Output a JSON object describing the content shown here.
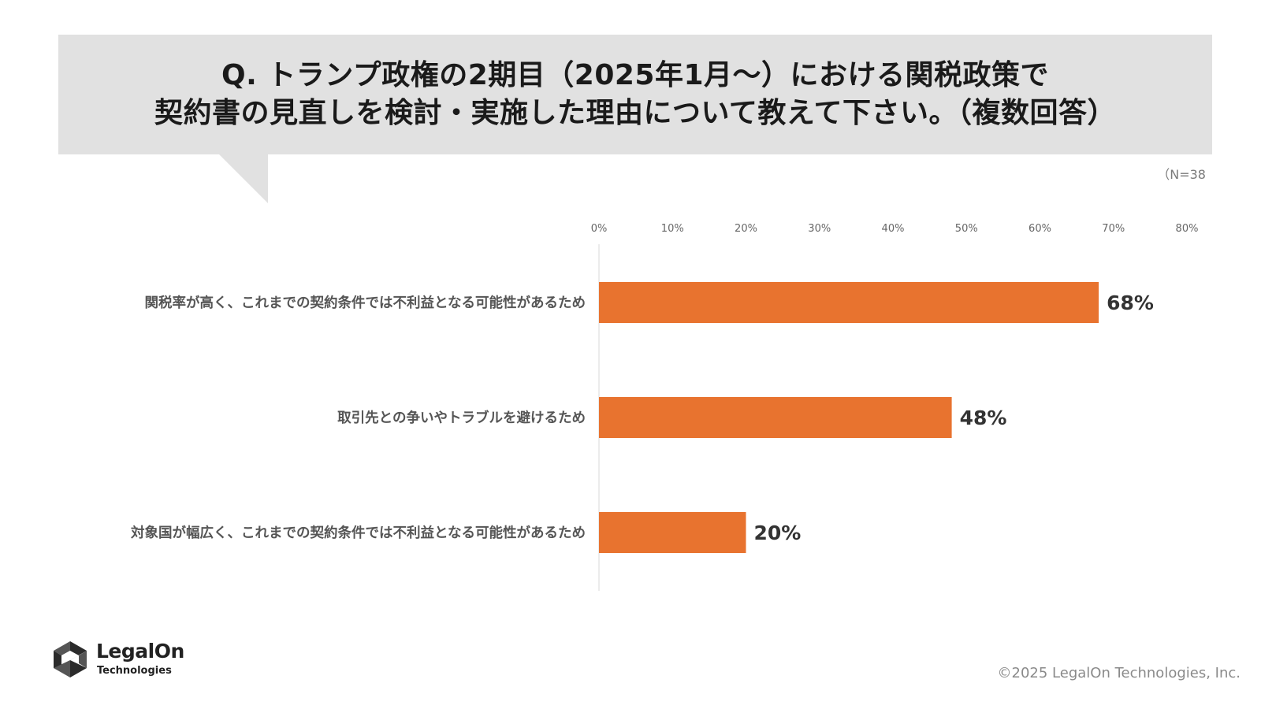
{
  "question": {
    "line1": "Q. トランプ政権の2期目（2025年1月～）における関税政策で",
    "line2": "契約書の見直しを検討・実施した理由について教えて下さい。（複数回答）"
  },
  "sample_size": "（N=38",
  "chart_data": {
    "type": "bar",
    "orientation": "horizontal",
    "title": "",
    "xlabel": "",
    "ylabel": "",
    "categories": [
      "関税率が高く、これまでの契約条件では不利益となる可能性があるため",
      "取引先との争いやトラブルを避けるため",
      "対象国が幅広く、これまでの契約条件では不利益となる可能性があるため"
    ],
    "values": [
      68,
      48,
      20
    ],
    "value_labels": [
      "68%",
      "48%",
      "20%"
    ],
    "xlim": [
      0,
      80
    ],
    "ticks": [
      0,
      10,
      20,
      30,
      40,
      50,
      60,
      70,
      80
    ],
    "tick_labels": [
      "0%",
      "10%",
      "20%",
      "30%",
      "40%",
      "50%",
      "60%",
      "70%",
      "80%"
    ],
    "tick_position": "top",
    "grid": false,
    "legend": "none",
    "bar_color": "#e8732f"
  },
  "footer": {
    "logo_name": "LegalOn",
    "logo_sub": "Technologies",
    "copyright": "©2025 LegalOn Technologies, Inc."
  }
}
